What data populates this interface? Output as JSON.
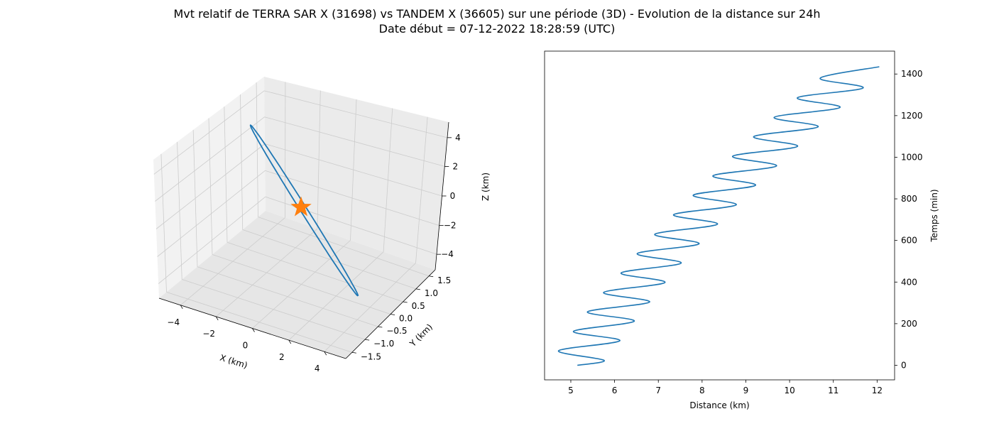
{
  "figure": {
    "title_line1": "Mvt relatif de TERRA SAR X (31698) vs TANDEM X (36605) sur une période (3D) - Evolution de la distance sur 24h",
    "title_line2": "Date début = 07-12-2022 18:28:59 (UTC)"
  },
  "colors": {
    "trajectory": "#1f77b4",
    "marker": "#ff7f0e",
    "pane": "#f2f2f2",
    "grid": "#cccccc"
  },
  "chart_data": [
    {
      "type": "line3d",
      "xlabel": "X (km)",
      "ylabel": "Y (km)",
      "zlabel": "Z (km)",
      "xticks": [
        "−4",
        "−2",
        "0",
        "2",
        "4"
      ],
      "yticks": [
        "−1.5",
        "−1.0",
        "−0.5",
        "0.0",
        "0.5",
        "1.0",
        "1.5"
      ],
      "zticks": [
        "−4",
        "−2",
        "0",
        "2",
        "4"
      ],
      "xlim": [
        -5.2,
        5.2
      ],
      "ylim": [
        -1.7,
        1.7
      ],
      "zlim": [
        -5.2,
        5.2
      ],
      "grid": true,
      "series": [
        {
          "kind": "ellipse-orbit",
          "x_amplitude": 5,
          "y_amplitude": 1.4,
          "z_amplitude": 5,
          "color": "#1f77b4"
        }
      ],
      "marker": {
        "shape": "star",
        "x": 0,
        "y": 0,
        "z": 0,
        "color": "#ff7f0e"
      }
    },
    {
      "type": "line",
      "xlabel": "Distance (km)",
      "ylabel": "Temps (min)",
      "xticks": [
        5,
        6,
        7,
        8,
        9,
        10,
        11,
        12
      ],
      "yticks": [
        0,
        200,
        400,
        600,
        800,
        1000,
        1200,
        1400
      ],
      "xlim": [
        4.4,
        12.4
      ],
      "ylim": [
        -70,
        1510
      ],
      "yaxis_side": "right",
      "grid": false,
      "series": [
        {
          "color": "#1f77b4",
          "points": [
            [
              5.15,
              0
            ],
            [
              5.76,
              24
            ],
            [
              4.72,
              70
            ],
            [
              6.12,
              118
            ],
            [
              5.06,
              163
            ],
            [
              6.45,
              212
            ],
            [
              5.38,
              257
            ],
            [
              6.8,
              304
            ],
            [
              5.75,
              350
            ],
            [
              7.15,
              398
            ],
            [
              6.15,
              444
            ],
            [
              7.52,
              491
            ],
            [
              6.52,
              537
            ],
            [
              7.93,
              584
            ],
            [
              6.92,
              630
            ],
            [
              8.35,
              678
            ],
            [
              7.35,
              724
            ],
            [
              8.78,
              771
            ],
            [
              7.8,
              818
            ],
            [
              9.22,
              865
            ],
            [
              8.25,
              911
            ],
            [
              9.7,
              958
            ],
            [
              8.7,
              1005
            ],
            [
              10.18,
              1052
            ],
            [
              9.18,
              1099
            ],
            [
              10.65,
              1146
            ],
            [
              9.65,
              1192
            ],
            [
              11.15,
              1239
            ],
            [
              10.18,
              1286
            ],
            [
              11.68,
              1333
            ],
            [
              10.7,
              1380
            ],
            [
              12.05,
              1435
            ]
          ]
        }
      ]
    }
  ]
}
